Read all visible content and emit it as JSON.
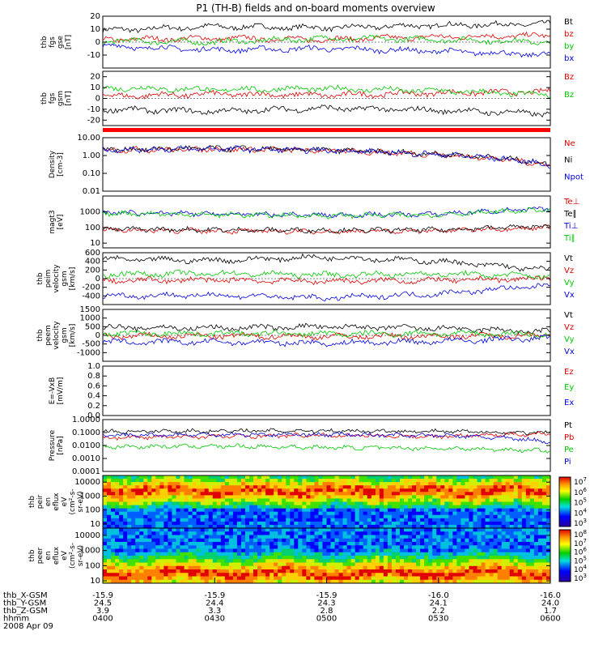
{
  "title": "P1 (TH-B) fields and on-board moments overview",
  "date": "2008 Apr 09",
  "footer": {
    "rows": [
      {
        "label": "thb_X-GSM",
        "values": [
          "-15.9",
          "-15.9",
          "-15.9",
          "-16.0",
          "-16.0"
        ]
      },
      {
        "label": "thb_Y-GSM",
        "values": [
          "24.5",
          "24.4",
          "24.3",
          "24.1",
          "24.0"
        ]
      },
      {
        "label": "thb_Z-GSM",
        "values": [
          "3.9",
          "3.3",
          "2.8",
          "2.2",
          "1.7"
        ]
      },
      {
        "label": "hhmm",
        "values": [
          "0400",
          "0430",
          "0500",
          "0530",
          "0600"
        ]
      }
    ]
  },
  "colors": {
    "black": "#000000",
    "red": "#e00000",
    "green": "#00c800",
    "blue": "#0000e0"
  },
  "chart_data": [
    {
      "type": "line",
      "id": "fgs_gse",
      "ylabel": [
        "thb",
        "fgs",
        "gse",
        "[nT]"
      ],
      "yscale": "linear",
      "ylim": [
        -20,
        20
      ],
      "ticks": [
        -10,
        0,
        10,
        20
      ],
      "legend": [
        {
          "name": "Bt",
          "color": "black"
        },
        {
          "name": "bz",
          "color": "red"
        },
        {
          "name": "by",
          "color": "green"
        },
        {
          "name": "bx",
          "color": "blue"
        }
      ],
      "x": [
        "0400",
        "0430",
        "0500",
        "0530",
        "0600"
      ],
      "series": [
        {
          "name": "Bt",
          "color": "black",
          "values": [
            9,
            12,
            11,
            13,
            14
          ]
        },
        {
          "name": "bz",
          "color": "red",
          "values": [
            2,
            3,
            2,
            4,
            5
          ]
        },
        {
          "name": "by",
          "color": "green",
          "values": [
            1,
            0,
            3,
            2,
            0
          ]
        },
        {
          "name": "bx",
          "color": "blue",
          "values": [
            -3,
            -6,
            -5,
            -7,
            -10
          ]
        }
      ]
    },
    {
      "type": "line",
      "id": "fgs_gsm",
      "ylabel": [
        "thb",
        "fgs",
        "gsm",
        "[nT]"
      ],
      "yscale": "linear",
      "ylim": [
        -25,
        25
      ],
      "ticks": [
        -20,
        -10,
        0,
        10,
        20
      ],
      "legend": [
        {
          "name": "Bz",
          "color": "red"
        },
        {
          "name": "Bz",
          "color": "green"
        }
      ],
      "x": [
        "0400",
        "0430",
        "0500",
        "0530",
        "0600"
      ],
      "series": [
        {
          "name": "Bz",
          "color": "red",
          "values": [
            2,
            4,
            3,
            5,
            6
          ]
        },
        {
          "name": "Bz",
          "color": "green",
          "values": [
            10,
            8,
            9,
            7,
            3
          ]
        },
        {
          "name": "",
          "color": "black",
          "values": [
            -10,
            -12,
            -9,
            -11,
            -14
          ]
        }
      ]
    },
    {
      "type": "line",
      "id": "density",
      "ylabel": [
        "Density",
        "[cm-3]"
      ],
      "yscale": "log",
      "ylim": [
        0.01,
        10
      ],
      "ticks": [
        0.01,
        0.1,
        1,
        10
      ],
      "ticklabels": [
        "0.01",
        "0.10",
        "1.00",
        "10.00"
      ],
      "legend": [
        {
          "name": "Ne",
          "color": "red"
        },
        {
          "name": "Ni",
          "color": "black"
        },
        {
          "name": "Npot",
          "color": "blue"
        }
      ],
      "x": [
        "0400",
        "0430",
        "0500",
        "0530",
        "0600"
      ],
      "series": [
        {
          "name": "Ne",
          "color": "red",
          "values": [
            2.0,
            2.3,
            1.9,
            1.1,
            0.25
          ]
        },
        {
          "name": "Ni",
          "color": "black",
          "values": [
            2.2,
            2.5,
            2.0,
            1.2,
            0.3
          ]
        },
        {
          "name": "Npot",
          "color": "blue",
          "values": [
            2.1,
            2.4,
            1.95,
            1.15,
            0.28
          ]
        }
      ]
    },
    {
      "type": "line",
      "id": "temperature",
      "ylabel": [
        "magt3",
        "[eV]"
      ],
      "yscale": "log",
      "ylim": [
        5,
        10000
      ],
      "ticks": [
        10,
        100,
        1000
      ],
      "ticklabels": [
        "10",
        "100",
        "1000"
      ],
      "legend": [
        {
          "name": "Te⊥",
          "color": "red"
        },
        {
          "name": "Te∥",
          "color": "black"
        },
        {
          "name": "Ti⊥",
          "color": "blue"
        },
        {
          "name": "Ti∥",
          "color": "green"
        }
      ],
      "x": [
        "0400",
        "0430",
        "0500",
        "0530",
        "0600"
      ],
      "series": [
        {
          "name": "Te⊥",
          "color": "red",
          "values": [
            70,
            60,
            55,
            60,
            100
          ]
        },
        {
          "name": "Te∥",
          "color": "black",
          "values": [
            80,
            70,
            65,
            70,
            120
          ]
        },
        {
          "name": "Ti⊥",
          "color": "blue",
          "values": [
            900,
            700,
            600,
            700,
            1500
          ]
        },
        {
          "name": "Ti∥",
          "color": "green",
          "values": [
            800,
            650,
            550,
            650,
            1300
          ]
        }
      ]
    },
    {
      "type": "line",
      "id": "peim_velocity",
      "ylabel": [
        "thb",
        "peim",
        "velocity",
        "gsm",
        "[km/s]"
      ],
      "yscale": "linear",
      "ylim": [
        -600,
        600
      ],
      "ticks": [
        -400,
        -200,
        0,
        200,
        400,
        600
      ],
      "legend": [
        {
          "name": "Vt",
          "color": "black"
        },
        {
          "name": "Vz",
          "color": "red"
        },
        {
          "name": "Vy",
          "color": "green"
        },
        {
          "name": "Vx",
          "color": "blue"
        }
      ],
      "x": [
        "0400",
        "0430",
        "0500",
        "0530",
        "0600"
      ],
      "series": [
        {
          "name": "Vt",
          "color": "black",
          "values": [
            450,
            420,
            500,
            400,
            200
          ]
        },
        {
          "name": "Vz",
          "color": "red",
          "values": [
            -50,
            -30,
            -60,
            -40,
            0
          ]
        },
        {
          "name": "Vy",
          "color": "green",
          "values": [
            100,
            120,
            90,
            110,
            60
          ]
        },
        {
          "name": "Vx",
          "color": "blue",
          "values": [
            -400,
            -380,
            -450,
            -350,
            -150
          ]
        }
      ]
    },
    {
      "type": "line",
      "id": "peem_velocity",
      "ylabel": [
        "thb",
        "peem",
        "velocity",
        "gsm",
        "[km/s]"
      ],
      "yscale": "linear",
      "ylim": [
        -1500,
        1500
      ],
      "ticks": [
        -1000,
        -500,
        0,
        500,
        1000,
        1500
      ],
      "legend": [
        {
          "name": "Vt",
          "color": "black"
        },
        {
          "name": "Vz",
          "color": "red"
        },
        {
          "name": "Vy",
          "color": "green"
        },
        {
          "name": "Vx",
          "color": "blue"
        }
      ],
      "x": [
        "0400",
        "0430",
        "0500",
        "0530",
        "0600"
      ],
      "series": [
        {
          "name": "Vt",
          "color": "black",
          "values": [
            450,
            420,
            500,
            400,
            200
          ]
        },
        {
          "name": "Vz",
          "color": "red",
          "values": [
            -50,
            -30,
            -60,
            -40,
            0
          ]
        },
        {
          "name": "Vy",
          "color": "green",
          "values": [
            100,
            120,
            90,
            110,
            60
          ]
        },
        {
          "name": "Vx",
          "color": "blue",
          "values": [
            -400,
            -380,
            -450,
            -350,
            -150
          ]
        }
      ]
    },
    {
      "type": "line",
      "id": "exb",
      "ylabel": [
        "E=-VxB",
        "[mV/m]"
      ],
      "yscale": "linear",
      "ylim": [
        0,
        1
      ],
      "ticks": [
        0,
        0.2,
        0.4,
        0.6,
        0.8,
        1.0
      ],
      "ticklabels": [
        "0.0",
        "0.2",
        "0.4",
        "0.6",
        "0.8",
        "1.0"
      ],
      "legend": [
        {
          "name": "Ez",
          "color": "red"
        },
        {
          "name": "Ey",
          "color": "green"
        },
        {
          "name": "Ex",
          "color": "blue"
        }
      ],
      "x": [],
      "series": []
    },
    {
      "type": "line",
      "id": "pressure",
      "ylabel": [
        "Pressure",
        "[nPa]"
      ],
      "yscale": "log",
      "ylim": [
        0.0001,
        1
      ],
      "ticks": [
        0.0001,
        0.001,
        0.01,
        0.1,
        1
      ],
      "ticklabels": [
        "0.0001",
        "0.0010",
        "0.0100",
        "0.1000",
        "1.0000"
      ],
      "legend": [
        {
          "name": "Pt",
          "color": "black"
        },
        {
          "name": "Pb",
          "color": "red"
        },
        {
          "name": "Pe",
          "color": "green"
        },
        {
          "name": "Pi",
          "color": "blue"
        }
      ],
      "x": [
        "0400",
        "0430",
        "0500",
        "0530",
        "0600"
      ],
      "series": [
        {
          "name": "Pt",
          "color": "black",
          "values": [
            0.12,
            0.13,
            0.14,
            0.12,
            0.09
          ]
        },
        {
          "name": "Pb",
          "color": "red",
          "values": [
            0.04,
            0.05,
            0.06,
            0.05,
            0.08
          ]
        },
        {
          "name": "Pe",
          "color": "green",
          "values": [
            0.008,
            0.009,
            0.007,
            0.006,
            0.004
          ]
        },
        {
          "name": "Pi",
          "color": "blue",
          "values": [
            0.06,
            0.07,
            0.07,
            0.06,
            0.02
          ]
        }
      ]
    },
    {
      "type": "heatmap",
      "id": "peir_eflux",
      "ylabel": [
        "thb",
        "peir",
        "en",
        "eflux",
        "eV",
        "(cm²-s-",
        "sr-eV)"
      ],
      "yscale": "log",
      "ylim": [
        5,
        30000
      ],
      "ticks": [
        10,
        100,
        1000,
        10000
      ],
      "ticklabels": [
        "10",
        "100",
        "1000",
        "10000"
      ],
      "colorbar": {
        "min": 1000,
        "max": 10000000,
        "ticklabels": [
          "10^7",
          "10^6",
          "10^5",
          "10^4",
          "10^3"
        ]
      }
    },
    {
      "type": "heatmap",
      "id": "peer_eflux",
      "ylabel": [
        "thb",
        "peer",
        "en",
        "eflux",
        "eV",
        "(cm²-s-",
        "sr-eV)"
      ],
      "yscale": "log",
      "ylim": [
        7,
        30000
      ],
      "ticks": [
        10,
        100,
        1000,
        10000
      ],
      "ticklabels": [
        "10",
        "100",
        "1000",
        "10000"
      ],
      "colorbar": {
        "min": 1000,
        "max": 100000000,
        "ticklabels": [
          "10^8",
          "10^7",
          "10^6",
          "10^5",
          "10^4",
          "10^3"
        ]
      }
    }
  ]
}
